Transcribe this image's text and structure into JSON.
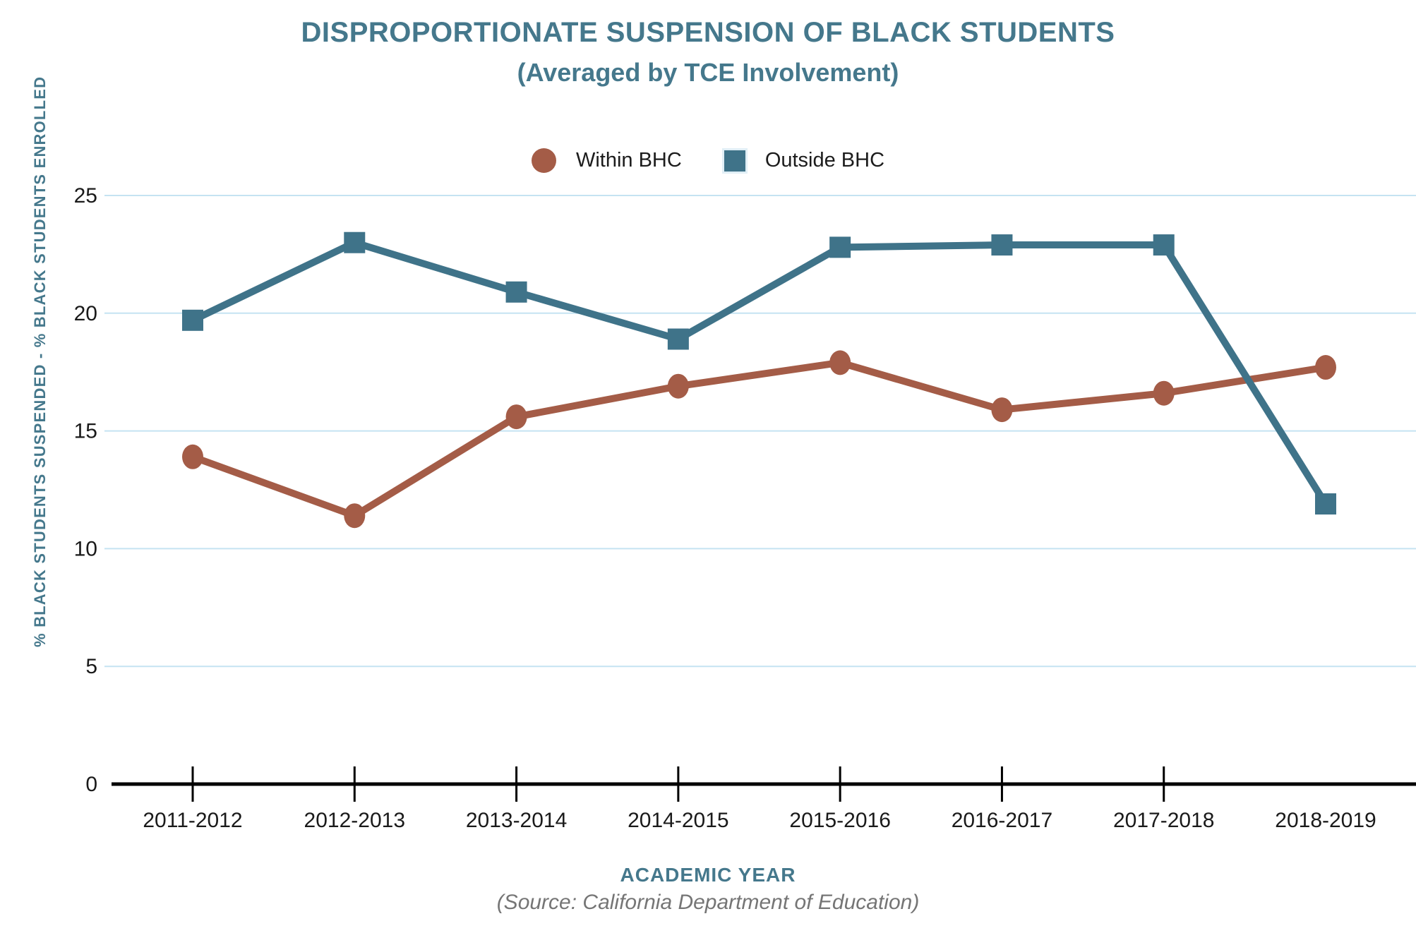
{
  "header": {
    "title": "DISPROPORTIONATE SUSPENSION OF BLACK STUDENTS",
    "subtitle": "(Averaged by TCE Involvement)"
  },
  "colors": {
    "title_teal": "#45788c",
    "within_bhc": "#a45c47",
    "outside_bhc": "#3f7389",
    "gridline": "#c5e3f2",
    "axis_black": "#000000",
    "tick_label": "#1a1a1a",
    "source_gray": "#757575"
  },
  "chart_data": {
    "type": "line",
    "title": "DISPROPORTIONATE SUSPENSION OF BLACK STUDENTS (Averaged by TCE Involvement)",
    "categories": [
      "2011-2012",
      "2012-2013",
      "2013-2014",
      "2014-2015",
      "2015-2016",
      "2016-2017",
      "2017-2018",
      "2018-2019"
    ],
    "series": [
      {
        "name": "Within BHC",
        "marker": "circle",
        "color": "#a45c47",
        "values": [
          13.9,
          11.4,
          15.6,
          16.9,
          17.9,
          15.9,
          16.6,
          17.7
        ]
      },
      {
        "name": "Outside BHC",
        "marker": "square",
        "color": "#3f7389",
        "values": [
          19.7,
          23.0,
          20.9,
          18.9,
          22.8,
          22.9,
          22.9,
          11.9
        ]
      }
    ],
    "xlabel": "ACADEMIC YEAR",
    "ylabel": "% BLACK STUDENTS SUSPENDED - % BLACK STUDENTS ENROLLED",
    "y_ticks": [
      0,
      5,
      10,
      15,
      20,
      25
    ],
    "ylim": [
      0,
      27
    ],
    "grid": "horizontal-only",
    "legend_position": "top-center",
    "source_note": "(Source: California Department of Education)"
  }
}
